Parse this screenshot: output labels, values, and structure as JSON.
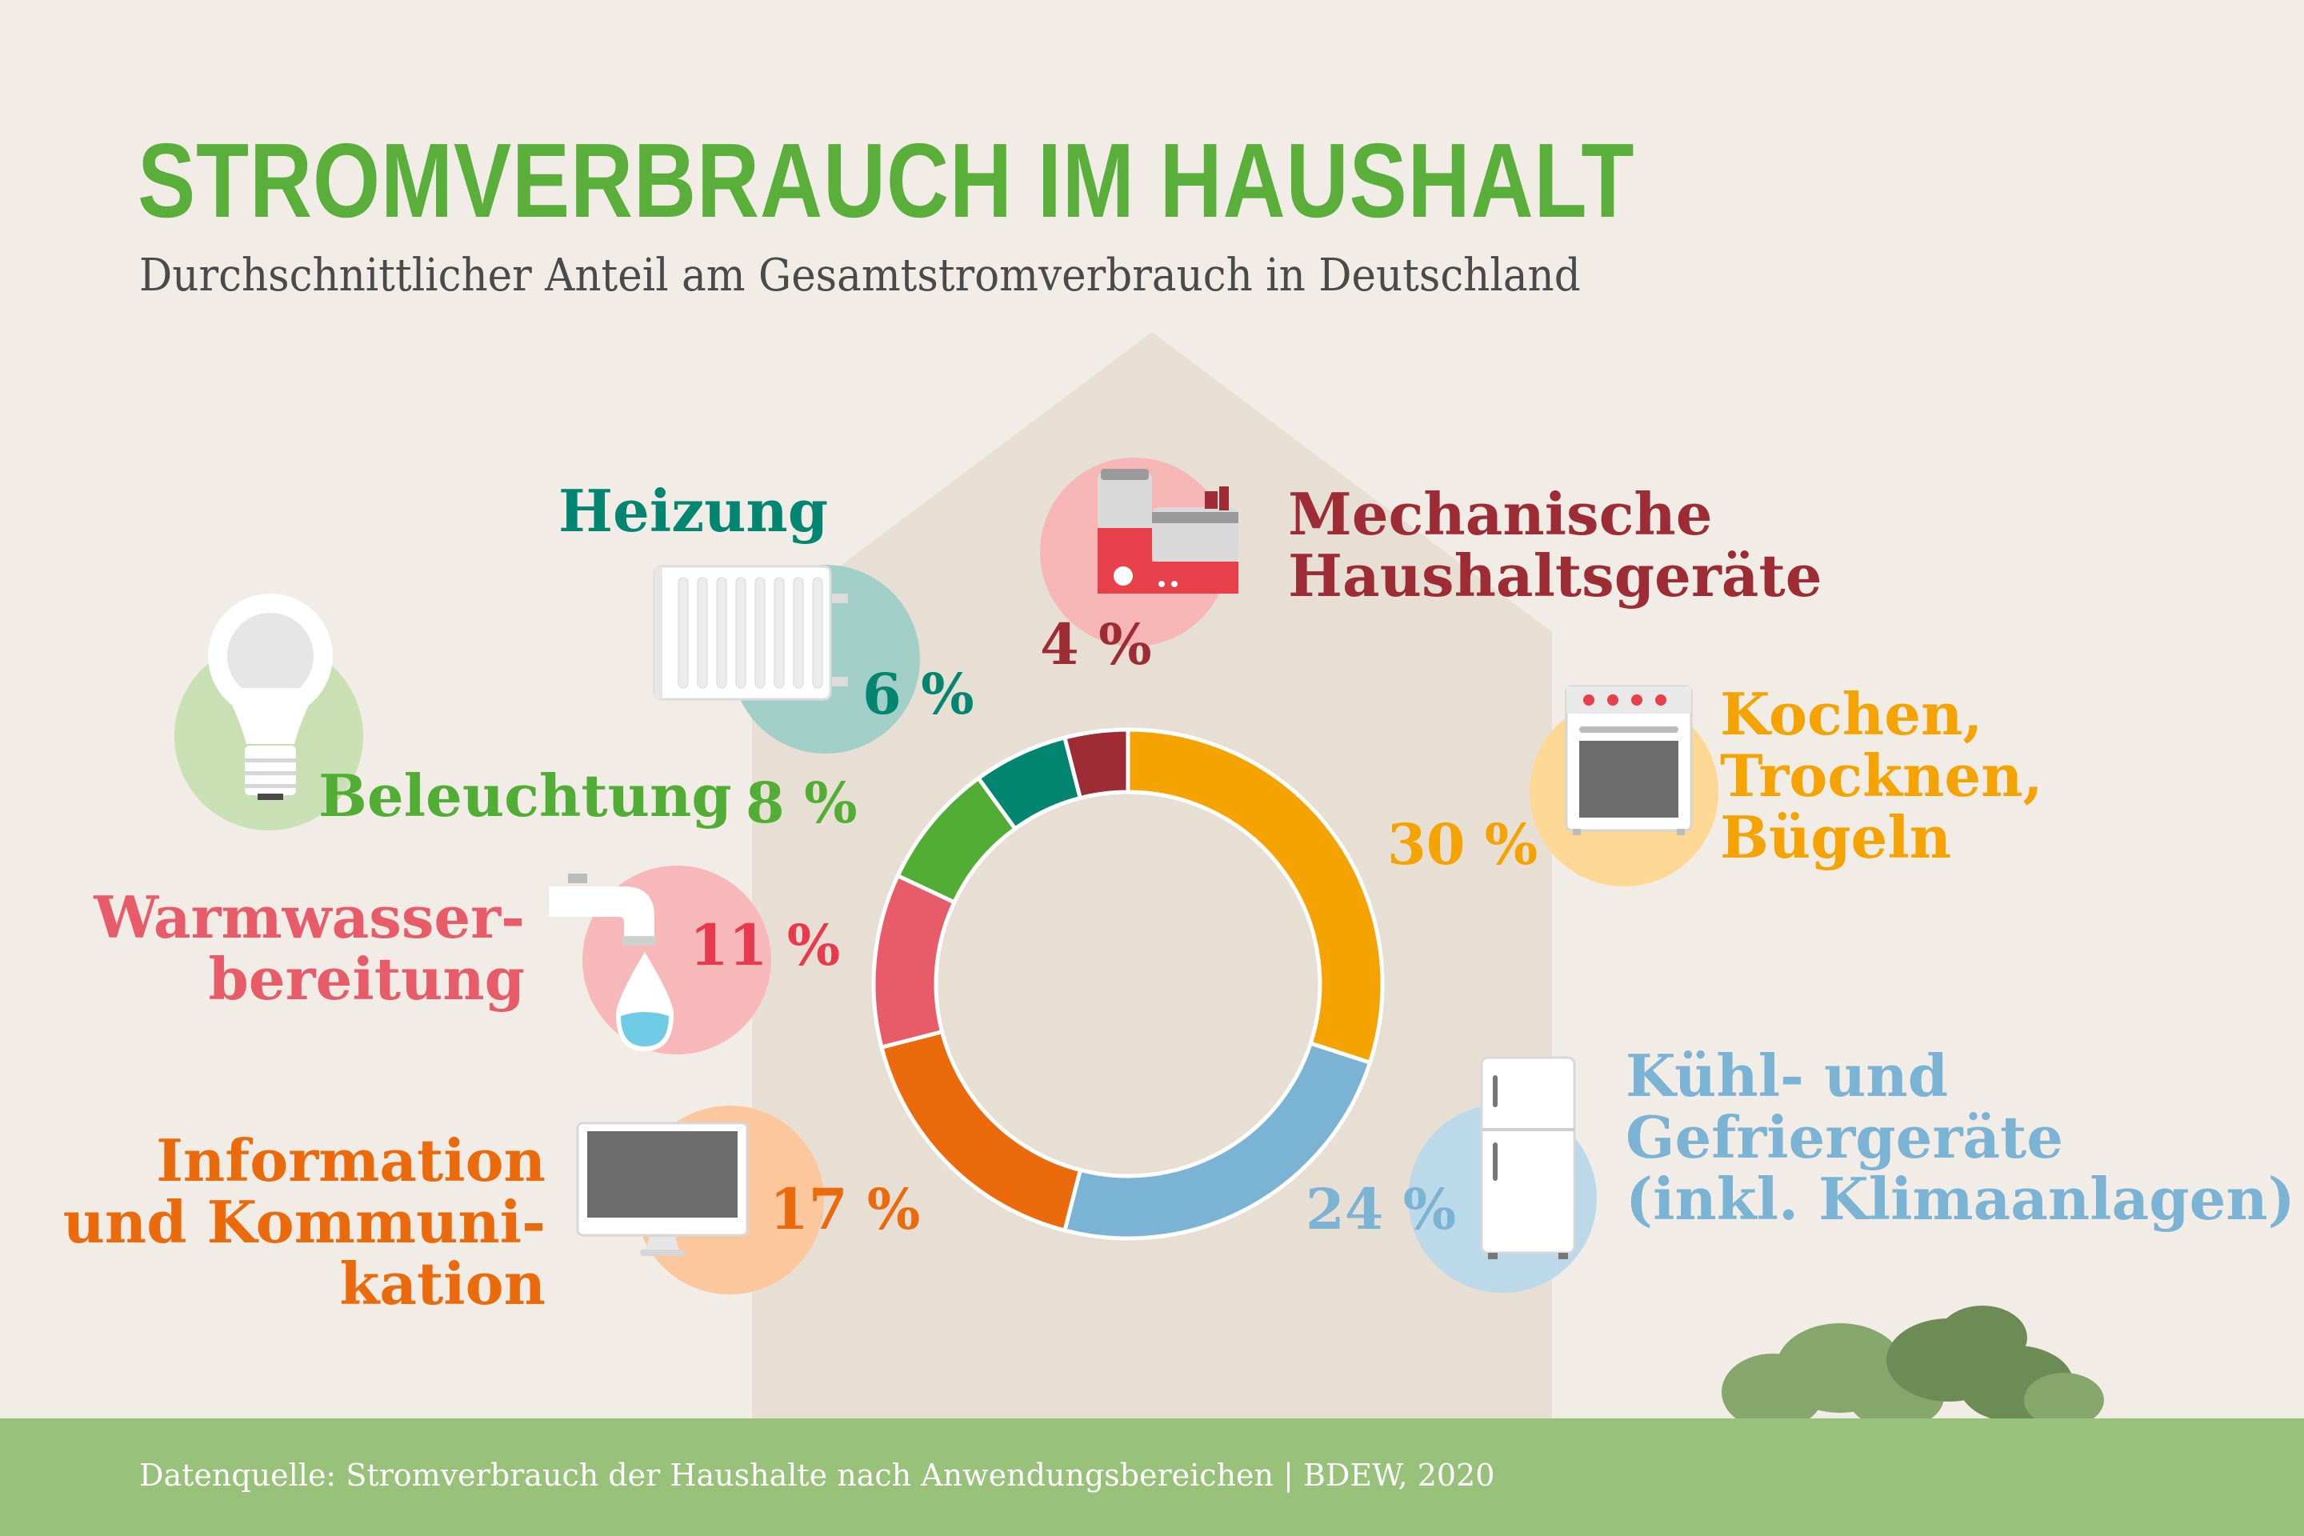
{
  "header": {
    "title": "STROMVERBRAUCH IM HAUSHALT",
    "subtitle": "Durchschnittlicher Anteil am Gesamtstromverbrauch in Deutschland"
  },
  "footer": {
    "source": "Datenquelle: Stromverbrauch der Haushalte nach Anwendungsbereichen | BDEW, 2020"
  },
  "colors": {
    "background": "#f1ede6",
    "house": "#e7dfd3",
    "ground": "#98c17a",
    "title": "#5aae3a",
    "subtitle": "#4a4a4a"
  },
  "icons": [
    "light-bulb-icon",
    "radiator-icon",
    "kitchen-machine-icon",
    "stove-icon",
    "faucet-icon",
    "computer-monitor-icon",
    "fridge-icon",
    "bush-icon"
  ],
  "chart_data": {
    "type": "donut",
    "title": "STROMVERBRAUCH IM HAUSHALT",
    "subtitle": "Durchschnittlicher Anteil am Gesamtstromverbrauch in Deutschland",
    "unit": "%",
    "slices": [
      {
        "name": "Kochen, Trocknen, Bügeln",
        "label": "Kochen,\nTrocknen,\nBügeln",
        "value": 30,
        "display": "30 %",
        "color": "#f5a300",
        "bubble": "#fdd894"
      },
      {
        "name": "Kühl- und Gefriergeräte (inkl. Klimaanlagen)",
        "label": "Kühl- und\nGefriergeräte\n(inkl. Klimaanlagen)",
        "value": 24,
        "display": "24 %",
        "color": "#7bb3d4",
        "bubble": "#bcd9ea"
      },
      {
        "name": "Information und Kommunikation",
        "label": "Information\nund Kommuni-\nkation",
        "value": 17,
        "display": "17 %",
        "color": "#eb6a0c",
        "bubble": "#fcc79c"
      },
      {
        "name": "Warmwasserbereitung",
        "label": "Warmwasser-\nbereitung",
        "value": 11,
        "display": "11 %",
        "color": "#e85c69",
        "bubble": "#f6b8b8"
      },
      {
        "name": "Beleuchtung",
        "label": "Beleuchtung",
        "value": 8,
        "display": "8 %",
        "color": "#52ad34",
        "bubble": "#c8e0b4"
      },
      {
        "name": "Heizung",
        "label": "Heizung",
        "value": 6,
        "display": "6 %",
        "color": "#028571",
        "bubble": "#a1cfc8"
      },
      {
        "name": "Mechanische Haushaltsgeräte",
        "label": "Mechanische\nHaushaltsgeräte",
        "value": 4,
        "display": "4 %",
        "color": "#9e2c35",
        "bubble": "#f6b6b6"
      }
    ]
  }
}
